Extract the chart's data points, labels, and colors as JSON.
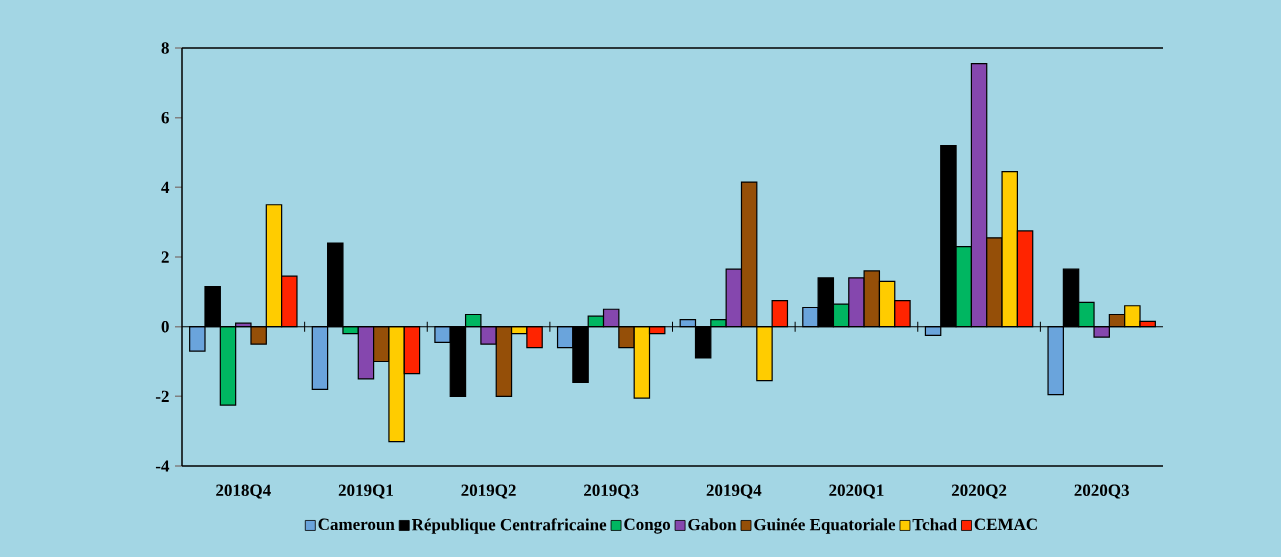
{
  "chart_data": {
    "type": "bar",
    "categories": [
      "2018Q4",
      "2019Q1",
      "2019Q2",
      "2019Q3",
      "2019Q4",
      "2020Q1",
      "2020Q2",
      "2020Q3"
    ],
    "series": [
      {
        "name": "Cameroun",
        "color": "#6aa4dc",
        "values": [
          -0.7,
          -1.8,
          -0.45,
          -0.6,
          0.2,
          0.55,
          -0.25,
          -1.95
        ]
      },
      {
        "name": "République Centrafricaine",
        "color": "#000000",
        "values": [
          1.15,
          2.4,
          -2.0,
          -1.6,
          -0.9,
          1.4,
          5.2,
          1.65
        ]
      },
      {
        "name": "Congo",
        "color": "#00b661",
        "values": [
          -2.25,
          -0.2,
          0.35,
          0.3,
          0.2,
          0.65,
          2.3,
          0.7
        ]
      },
      {
        "name": "Gabon",
        "color": "#8547ae",
        "values": [
          0.1,
          -1.5,
          -0.5,
          0.5,
          1.65,
          1.4,
          7.55,
          -0.3
        ]
      },
      {
        "name": "Guinée Equatoriale",
        "color": "#954f08",
        "values": [
          -0.5,
          -1.0,
          -2.0,
          -0.6,
          4.15,
          1.6,
          2.55,
          0.35
        ]
      },
      {
        "name": "Tchad",
        "color": "#ffcc00",
        "values": [
          3.5,
          -3.3,
          -0.2,
          -2.05,
          -1.55,
          1.3,
          4.45,
          0.6
        ]
      },
      {
        "name": "CEMAC",
        "color": "#ff2400",
        "values": [
          1.45,
          -1.35,
          -0.6,
          -0.2,
          0.75,
          0.75,
          2.75,
          0.15
        ]
      }
    ],
    "ylim": [
      -4,
      8
    ],
    "yticks": [
      -4,
      -2,
      0,
      2,
      4,
      6,
      8
    ],
    "legend": "bottom"
  }
}
